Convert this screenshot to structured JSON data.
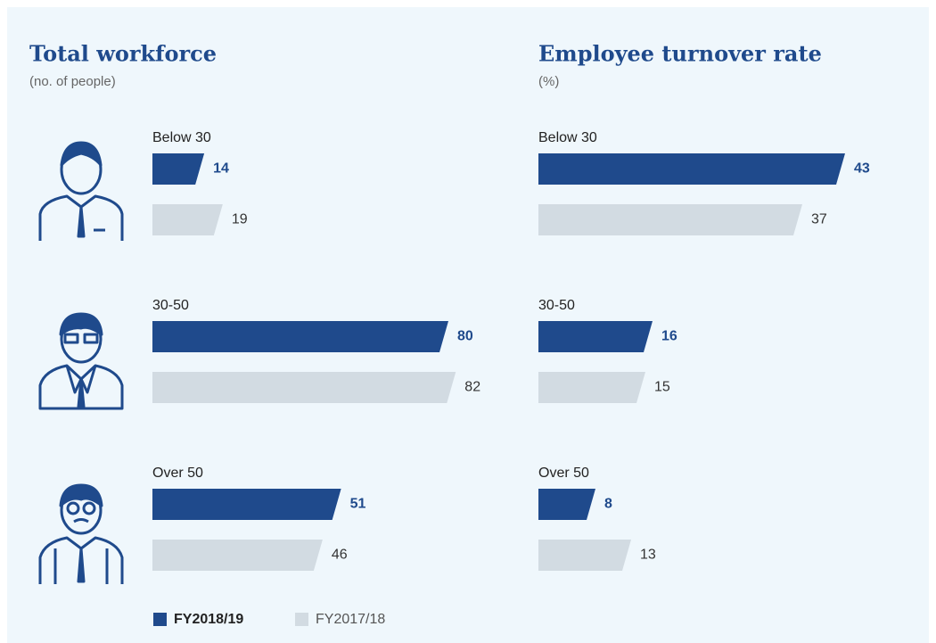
{
  "chart_data": [
    {
      "type": "bar",
      "title": "Total workforce",
      "subtitle": "(no. of people)",
      "categories": [
        "Below 30",
        "30-50",
        "Over 50"
      ],
      "series": [
        {
          "name": "FY2018/19",
          "color": "#1f4a8c",
          "values": [
            14,
            80,
            51
          ]
        },
        {
          "name": "FY2017/18",
          "color": "#d2dbe2",
          "values": [
            19,
            82,
            46
          ]
        }
      ]
    },
    {
      "type": "bar",
      "title": "Employee turnover rate",
      "subtitle": "(%)",
      "categories": [
        "Below 30",
        "30-50",
        "Over 50"
      ],
      "series": [
        {
          "name": "FY2018/19",
          "color": "#1f4a8c",
          "values": [
            43,
            16,
            8
          ]
        },
        {
          "name": "FY2017/18",
          "color": "#d2dbe2",
          "values": [
            37,
            15,
            13
          ]
        }
      ]
    }
  ]
}
